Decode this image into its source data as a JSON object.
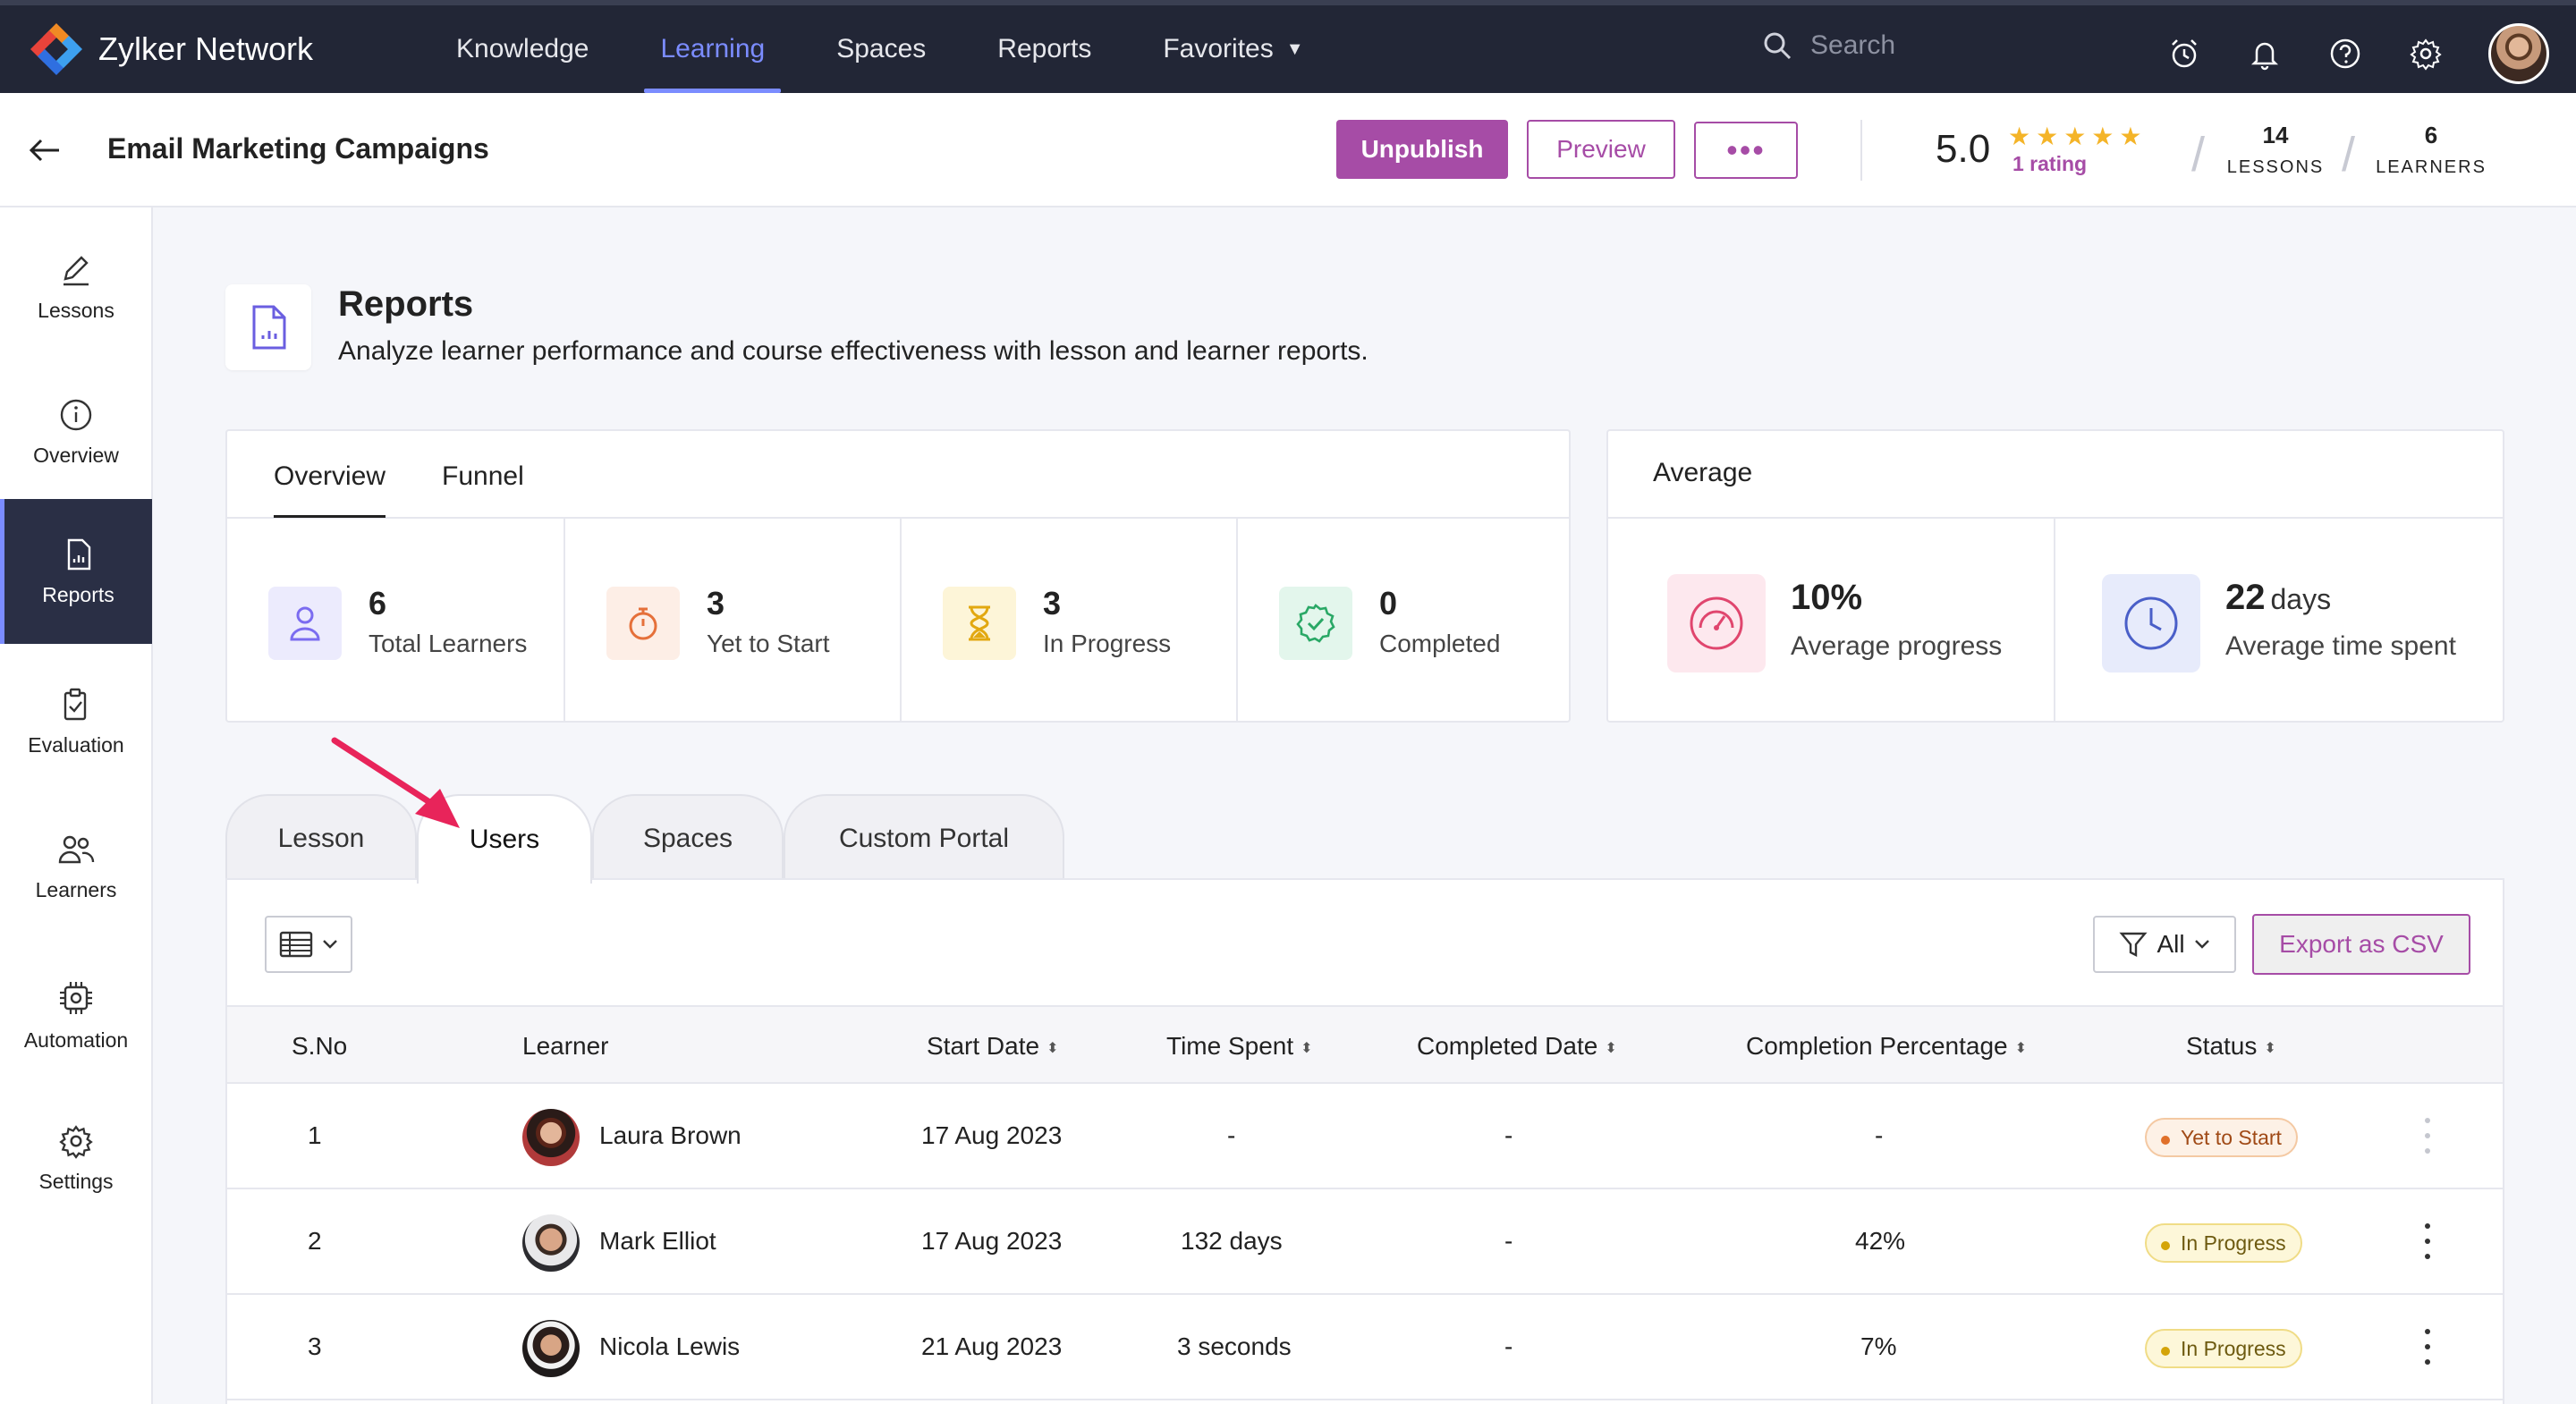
{
  "topnav": {
    "brand": "Zylker Network",
    "items": [
      {
        "label": "Knowledge"
      },
      {
        "label": "Learning"
      },
      {
        "label": "Spaces"
      },
      {
        "label": "Reports"
      },
      {
        "label": "Favorites"
      }
    ],
    "active_item": "Learning",
    "search_placeholder": "Search",
    "icons": [
      "alarm-icon",
      "bell-icon",
      "help-icon",
      "settings-icon"
    ]
  },
  "course": {
    "title": "Email Marketing Campaigns",
    "unpublish_label": "Unpublish",
    "preview_label": "Preview",
    "more_label": "•••",
    "rating_value": "5.0",
    "stars": "★★★★★",
    "rating_count": "1 rating",
    "lessons_count": "14",
    "lessons_label": "LESSONS",
    "learners_count": "6",
    "learners_label": "LEARNERS"
  },
  "sidebar": {
    "items": [
      {
        "label": "Lessons",
        "icon": "pencil-icon"
      },
      {
        "label": "Overview",
        "icon": "info-icon"
      },
      {
        "label": "Reports",
        "icon": "report-icon"
      },
      {
        "label": "Evaluation",
        "icon": "clipboard-icon"
      },
      {
        "label": "Learners",
        "icon": "users-icon"
      },
      {
        "label": "Automation",
        "icon": "automation-icon"
      },
      {
        "label": "Settings",
        "icon": "gear-icon"
      }
    ],
    "active": "Reports"
  },
  "page": {
    "title": "Reports",
    "subtitle": "Analyze learner performance and course effectiveness with lesson and learner reports."
  },
  "overview_card": {
    "tabs": [
      "Overview",
      "Funnel"
    ],
    "active_tab": "Overview",
    "metrics": [
      {
        "value": "6",
        "label": "Total Learners",
        "color": "#7b6cf0"
      },
      {
        "value": "3",
        "label": "Yet to Start",
        "color": "#e5703a"
      },
      {
        "value": "3",
        "label": "In Progress",
        "color": "#e2a810"
      },
      {
        "value": "0",
        "label": "Completed",
        "color": "#2aa866"
      }
    ]
  },
  "average_card": {
    "title": "Average",
    "progress_value": "10%",
    "progress_label": "Average progress",
    "time_value": "22",
    "time_unit": "days",
    "time_label": "Average time spent"
  },
  "report_tabs": [
    "Lesson",
    "Users",
    "Spaces",
    "Custom Portal"
  ],
  "active_report_tab": "Users",
  "table_toolbar": {
    "filter_label": "All",
    "export_label": "Export as CSV"
  },
  "table": {
    "headers": [
      "S.No",
      "Learner",
      "Start Date",
      "Time Spent",
      "Completed Date",
      "Completion Percentage",
      "Status"
    ],
    "rows": [
      {
        "sno": "1",
        "learner": "Laura Brown",
        "start": "17 Aug 2023",
        "time": "-",
        "completed": "-",
        "percent": "-",
        "status": "Yet to Start"
      },
      {
        "sno": "2",
        "learner": "Mark Elliot",
        "start": "17 Aug 2023",
        "time": "132 days",
        "completed": "-",
        "percent": "42%",
        "status": "In Progress"
      },
      {
        "sno": "3",
        "learner": "Nicola Lewis",
        "start": "21 Aug 2023",
        "time": "3 seconds",
        "completed": "-",
        "percent": "7%",
        "status": "In Progress"
      }
    ]
  },
  "colors": {
    "accent": "#a64ca6",
    "nav_bg": "#222636",
    "nav_active": "#7b8cff",
    "annotation_arrow": "#e8245a"
  }
}
